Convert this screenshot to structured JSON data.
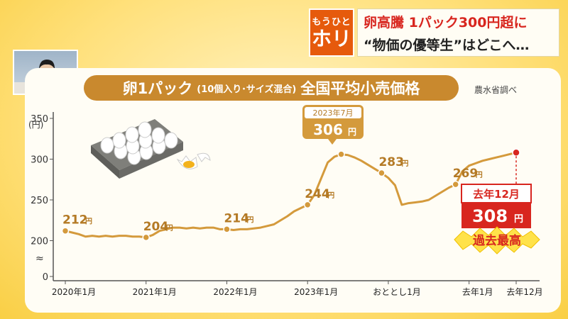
{
  "banner": {
    "tag_line1": "もうひと",
    "tag_line2": "ホリ",
    "headline1": "卵高騰 1パック300円超に",
    "headline2": "“物価の優等生”はどこへ…"
  },
  "chart_data": {
    "type": "line",
    "title_main": "卵1パック",
    "title_paren": "(10個入り･サイズ混合)",
    "title_rest": "全国平均小売価格",
    "source": "農水省調べ",
    "y_unit": "(円)",
    "ylim": [
      0,
      350
    ],
    "y_ticks": [
      "350",
      "300",
      "250",
      "200",
      "0"
    ],
    "x_labels": [
      "2020年1月",
      "2021年1月",
      "2022年1月",
      "2023年1月",
      "おととし1月",
      "去年1月",
      "去年12月"
    ],
    "series": [
      {
        "color": "#d49a3c",
        "values": [
          212,
          210,
          208,
          205,
          206,
          205,
          206,
          205,
          206,
          206,
          205,
          205,
          204,
          207,
          212,
          214,
          216,
          216,
          215,
          216,
          215,
          216,
          216,
          214,
          214,
          213,
          214,
          214,
          215,
          216,
          218,
          220,
          225,
          230,
          236,
          240,
          244,
          256,
          276,
          296,
          303,
          306,
          305,
          302,
          298,
          293,
          288,
          283,
          277,
          268,
          244,
          246,
          247,
          248,
          250,
          255,
          260,
          265,
          269,
          285,
          292,
          295,
          298,
          300,
          302,
          304,
          306,
          308
        ]
      }
    ],
    "markers": [
      {
        "index": 0,
        "label": "212",
        "unit": "円"
      },
      {
        "index": 12,
        "label": "204",
        "unit": "円"
      },
      {
        "index": 24,
        "label": "214",
        "unit": "円"
      },
      {
        "index": 36,
        "label": "244",
        "unit": "円"
      },
      {
        "index": 47,
        "label": "283",
        "unit": "円"
      },
      {
        "index": 58,
        "label": "269",
        "unit": "円"
      }
    ],
    "peak_callout": {
      "date": "2023年7月",
      "value": "306",
      "unit": "円"
    },
    "latest_callout": {
      "date": "去年12月",
      "value": "308",
      "unit": "円",
      "badge": "過去最高"
    }
  }
}
